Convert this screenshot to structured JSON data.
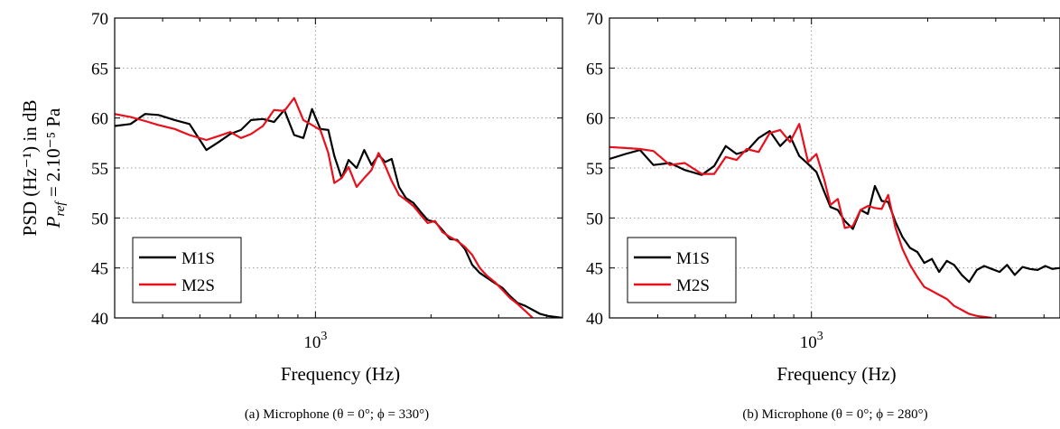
{
  "ylabel_line1": "PSD (Hz⁻¹) in dB",
  "ylabel_line2_prefix": "P",
  "ylabel_line2_sub": "ref",
  "ylabel_line2_suffix": " = 2.10⁻⁵ Pa",
  "chart_data": [
    {
      "type": "line",
      "caption": "(a) Microphone (θ = 0°; ϕ = 330°)",
      "xlabel": "Frequency (Hz)",
      "ylabel": "PSD (Hz⁻¹) in dB  P_ref = 2.10⁻⁵ Pa",
      "xscale": "log",
      "xlim": [
        300,
        4400
      ],
      "ylim": [
        40,
        70
      ],
      "yticks": [
        40,
        45,
        50,
        55,
        60,
        65,
        70
      ],
      "xtick_label": {
        "base": "10",
        "exp": "3",
        "value": 1000
      },
      "grid": true,
      "legend": {
        "placement": "bottom-left"
      },
      "series": [
        {
          "name": "M1S",
          "color": "#000000",
          "x": [
            300,
            330,
            360,
            390,
            430,
            470,
            520,
            560,
            600,
            640,
            680,
            730,
            780,
            830,
            880,
            930,
            980,
            1030,
            1080,
            1120,
            1170,
            1220,
            1280,
            1340,
            1400,
            1460,
            1520,
            1580,
            1650,
            1720,
            1800,
            1880,
            1960,
            2050,
            2140,
            2240,
            2340,
            2450,
            2560,
            2680,
            2800,
            2930,
            3070,
            3210,
            3360,
            3520,
            3680,
            3850,
            4030,
            4200,
            4400
          ],
          "y": [
            59.2,
            59.4,
            60.4,
            60.3,
            59.8,
            59.4,
            56.8,
            57.6,
            58.4,
            58.8,
            59.8,
            59.9,
            59.6,
            60.8,
            58.3,
            58.0,
            60.9,
            58.9,
            58.8,
            56.2,
            54.0,
            55.8,
            55.0,
            56.8,
            55.3,
            56.3,
            55.6,
            55.9,
            53.1,
            52.0,
            51.5,
            50.6,
            49.8,
            49.6,
            48.8,
            47.9,
            47.8,
            46.9,
            45.3,
            44.5,
            44.0,
            43.5,
            43.0,
            42.2,
            41.5,
            41.2,
            40.8,
            40.4,
            40.2,
            40.1,
            40.0
          ]
        },
        {
          "name": "M2S",
          "color": "#e8101c",
          "x": [
            300,
            330,
            360,
            390,
            430,
            470,
            520,
            560,
            600,
            640,
            680,
            730,
            780,
            830,
            880,
            930,
            980,
            1030,
            1080,
            1120,
            1170,
            1220,
            1280,
            1340,
            1400,
            1460,
            1520,
            1580,
            1650,
            1720,
            1800,
            1880,
            1960,
            2050,
            2140,
            2240,
            2340,
            2450,
            2560,
            2680,
            2800,
            2930,
            3070,
            3210,
            3360,
            3520,
            3680
          ],
          "y": [
            60.4,
            60.1,
            59.7,
            59.3,
            58.9,
            58.3,
            57.8,
            58.2,
            58.6,
            58.0,
            58.4,
            59.2,
            60.8,
            60.7,
            62.0,
            59.8,
            59.3,
            58.8,
            56.5,
            53.5,
            54.0,
            55.1,
            53.1,
            54.0,
            54.8,
            56.5,
            55.2,
            53.7,
            52.3,
            51.8,
            51.2,
            50.3,
            49.5,
            49.7,
            48.6,
            48.1,
            47.7,
            47.1,
            46.3,
            45.0,
            44.2,
            43.6,
            42.8,
            42.0,
            41.4,
            40.7,
            40.0
          ]
        }
      ]
    },
    {
      "type": "line",
      "caption": "(b) Microphone (θ = 0°; ϕ = 280°)",
      "xlabel": "Frequency (Hz)",
      "ylabel": "",
      "xscale": "log",
      "xlim": [
        300,
        4400
      ],
      "ylim": [
        40,
        70
      ],
      "yticks": [
        40,
        45,
        50,
        55,
        60,
        65,
        70
      ],
      "xtick_label": {
        "base": "10",
        "exp": "3",
        "value": 1000
      },
      "grid": true,
      "legend": {
        "placement": "bottom-left"
      },
      "series": [
        {
          "name": "M1S",
          "color": "#000000",
          "x": [
            300,
            330,
            360,
            390,
            430,
            470,
            520,
            560,
            600,
            640,
            680,
            730,
            780,
            830,
            880,
            930,
            980,
            1030,
            1080,
            1120,
            1170,
            1220,
            1280,
            1340,
            1400,
            1460,
            1520,
            1580,
            1650,
            1720,
            1800,
            1880,
            1960,
            2050,
            2140,
            2240,
            2340,
            2450,
            2560,
            2680,
            2800,
            2930,
            3070,
            3210,
            3360,
            3520,
            3680,
            3850,
            4030,
            4200,
            4400
          ],
          "y": [
            55.9,
            56.4,
            56.8,
            55.3,
            55.5,
            54.8,
            54.3,
            55.2,
            57.2,
            56.4,
            56.7,
            58.0,
            58.7,
            57.2,
            58.2,
            56.2,
            55.4,
            54.6,
            52.6,
            51.1,
            50.8,
            49.7,
            48.9,
            50.8,
            50.4,
            53.2,
            51.7,
            51.6,
            49.6,
            48.1,
            47.0,
            46.6,
            45.5,
            45.9,
            44.6,
            45.7,
            45.3,
            44.3,
            43.6,
            44.8,
            45.2,
            44.9,
            44.6,
            45.3,
            44.3,
            45.1,
            44.9,
            44.8,
            45.2,
            44.9,
            45.0
          ]
        },
        {
          "name": "M2S",
          "color": "#e8101c",
          "x": [
            300,
            330,
            360,
            390,
            430,
            470,
            520,
            560,
            600,
            640,
            680,
            730,
            780,
            830,
            880,
            930,
            980,
            1030,
            1080,
            1120,
            1170,
            1220,
            1280,
            1340,
            1400,
            1460,
            1520,
            1580,
            1650,
            1720,
            1800,
            1880,
            1960,
            2050,
            2140,
            2240,
            2340,
            2450,
            2560,
            2680,
            2800,
            2930
          ],
          "y": [
            57.1,
            57.0,
            56.9,
            56.7,
            55.3,
            55.5,
            54.4,
            54.4,
            56.1,
            55.8,
            56.9,
            56.6,
            58.5,
            58.8,
            57.6,
            59.4,
            55.6,
            56.4,
            53.8,
            51.3,
            51.9,
            49.0,
            49.2,
            50.8,
            51.2,
            51.0,
            50.9,
            52.3,
            49.0,
            46.9,
            45.3,
            44.1,
            43.1,
            42.7,
            42.3,
            41.9,
            41.2,
            40.8,
            40.4,
            40.2,
            40.1,
            40.0
          ]
        }
      ]
    }
  ]
}
